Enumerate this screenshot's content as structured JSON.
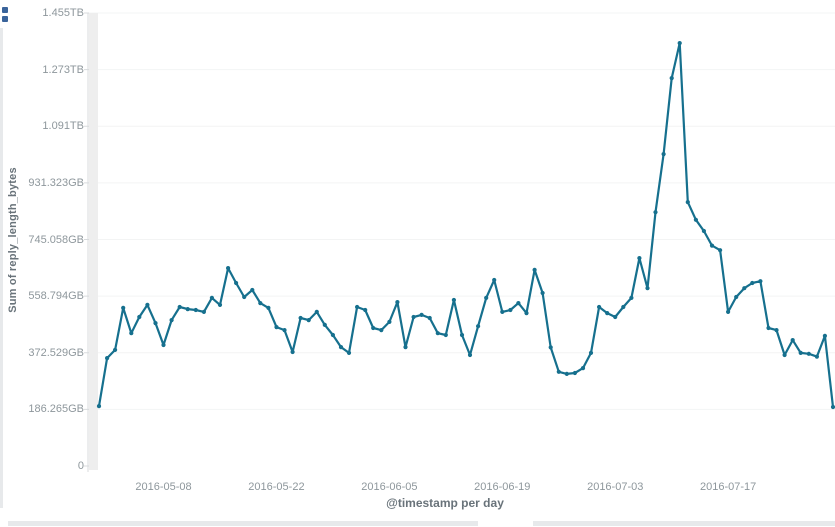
{
  "panel": {
    "handle_icons": [
      {
        "name": "panel-corner-icon-top",
        "color": "#3a649b"
      },
      {
        "name": "panel-corner-icon-bottom",
        "color": "#3a649b"
      }
    ]
  },
  "chart_data": {
    "type": "line",
    "title": "",
    "xlabel": "@timestamp per day",
    "ylabel": "Sum of reply_length_bytes",
    "series": [
      {
        "name": "Sum of reply_length_bytes",
        "unit": "GB",
        "x_start_date": "2016-04-30",
        "x_interval": "1 day",
        "values_gb": [
          197,
          355,
          382,
          520,
          437,
          490,
          530,
          470,
          398,
          480,
          523,
          516,
          513,
          507,
          553,
          530,
          651,
          602,
          556,
          579,
          536,
          520,
          457,
          447,
          375,
          487,
          480,
          507,
          464,
          431,
          391,
          372,
          523,
          513,
          454,
          447,
          474,
          539,
          391,
          490,
          497,
          487,
          437,
          431,
          546,
          431,
          365,
          460,
          553,
          612,
          507,
          513,
          536,
          503,
          645,
          569,
          390,
          310,
          303,
          306,
          322,
          372,
          523,
          503,
          490,
          523,
          553,
          684,
          585,
          835,
          1026,
          1276,
          1391,
          868,
          810,
          773,
          725,
          710,
          507,
          556,
          585,
          602,
          608,
          454,
          447,
          365,
          414,
          372,
          369,
          360,
          428,
          194
        ]
      }
    ],
    "ylim_gb": [
      0,
      1490.116
    ],
    "y_ticks": [
      {
        "label": "1.455TB",
        "gb": 1490.116
      },
      {
        "label": "1.273TB",
        "gb": 1303.852
      },
      {
        "label": "1.091TB",
        "gb": 1117.587
      },
      {
        "label": "931.323GB",
        "gb": 931.323
      },
      {
        "label": "745.058GB",
        "gb": 745.058
      },
      {
        "label": "558.794GB",
        "gb": 558.794
      },
      {
        "label": "372.529GB",
        "gb": 372.529
      },
      {
        "label": "186.265GB",
        "gb": 186.265
      },
      {
        "label": "0",
        "gb": 0
      }
    ],
    "x_ticks": [
      {
        "label": "2016-05-08",
        "day_index": 8
      },
      {
        "label": "2016-05-22",
        "day_index": 22
      },
      {
        "label": "2016-06-05",
        "day_index": 36
      },
      {
        "label": "2016-06-19",
        "day_index": 50
      },
      {
        "label": "2016-07-03",
        "day_index": 64
      },
      {
        "label": "2016-07-17",
        "day_index": 78
      }
    ],
    "line_color": "#16708e",
    "axis_line_color": "#d8dbdd",
    "gridline_color": "#f3f4f4",
    "partial_bucket_band_color": "#eeeeee",
    "legend": "none",
    "grid": "faint-horizontal"
  }
}
